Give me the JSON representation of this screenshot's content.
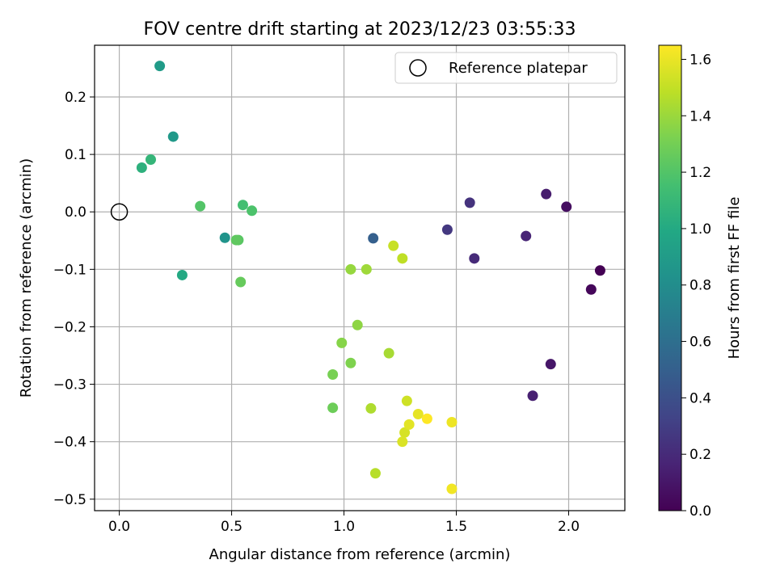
{
  "chart_data": {
    "type": "scatter",
    "title": "FOV centre drift starting at 2023/12/23 03:55:33",
    "xlabel": "Angular distance from reference (arcmin)",
    "ylabel": "Rotation from reference (arcmin)",
    "xlim": [
      -0.11,
      2.25
    ],
    "ylim": [
      -0.52,
      0.29
    ],
    "xticks": [
      0.0,
      0.5,
      1.0,
      1.5,
      2.0
    ],
    "xtick_labels": [
      "0.0",
      "0.5",
      "1.0",
      "1.5",
      "2.0"
    ],
    "yticks": [
      0.2,
      0.1,
      0.0,
      -0.1,
      -0.2,
      -0.3,
      -0.4,
      -0.5
    ],
    "ytick_labels": [
      "0.2",
      "0.1",
      "0.0",
      "−0.1",
      "−0.2",
      "−0.3",
      "−0.4",
      "−0.5"
    ],
    "grid": true,
    "legend": {
      "position": "top-right",
      "entries": [
        "Reference platepar"
      ]
    },
    "colormap": "viridis",
    "colorbar": {
      "label": "Hours from first FF file",
      "range": [
        0.0,
        1.65
      ],
      "ticks": [
        0.0,
        0.2,
        0.4,
        0.6,
        0.8,
        1.0,
        1.2,
        1.4,
        1.6
      ],
      "tick_labels": [
        "0.0",
        "0.2",
        "0.4",
        "0.6",
        "0.8",
        "1.0",
        "1.2",
        "1.4",
        "1.6"
      ]
    },
    "reference_point": {
      "x": 0.0,
      "y": 0.0
    },
    "points": [
      {
        "x": 2.14,
        "y": -0.102,
        "h": 0.0
      },
      {
        "x": 2.1,
        "y": -0.135,
        "h": 0.03
      },
      {
        "x": 1.99,
        "y": 0.009,
        "h": 0.06
      },
      {
        "x": 1.92,
        "y": -0.265,
        "h": 0.1
      },
      {
        "x": 1.9,
        "y": 0.031,
        "h": 0.13
      },
      {
        "x": 1.84,
        "y": -0.32,
        "h": 0.15
      },
      {
        "x": 1.81,
        "y": -0.042,
        "h": 0.17
      },
      {
        "x": 1.58,
        "y": -0.081,
        "h": 0.2
      },
      {
        "x": 1.56,
        "y": 0.016,
        "h": 0.24
      },
      {
        "x": 1.46,
        "y": -0.031,
        "h": 0.27
      },
      {
        "x": 1.13,
        "y": -0.046,
        "h": 0.5
      },
      {
        "x": 0.47,
        "y": -0.045,
        "h": 0.85
      },
      {
        "x": 0.24,
        "y": 0.131,
        "h": 0.88
      },
      {
        "x": 0.18,
        "y": 0.254,
        "h": 0.9
      },
      {
        "x": 0.28,
        "y": -0.11,
        "h": 1.0
      },
      {
        "x": 0.1,
        "y": 0.077,
        "h": 1.05
      },
      {
        "x": 0.14,
        "y": 0.091,
        "h": 1.08
      },
      {
        "x": 0.55,
        "y": 0.012,
        "h": 1.15
      },
      {
        "x": 0.59,
        "y": 0.002,
        "h": 1.18
      },
      {
        "x": 0.36,
        "y": 0.01,
        "h": 1.2
      },
      {
        "x": 0.53,
        "y": -0.049,
        "h": 1.22
      },
      {
        "x": 0.52,
        "y": -0.049,
        "h": 1.24
      },
      {
        "x": 0.54,
        "y": -0.122,
        "h": 1.26
      },
      {
        "x": 0.95,
        "y": -0.341,
        "h": 1.28
      },
      {
        "x": 0.95,
        "y": -0.283,
        "h": 1.31
      },
      {
        "x": 1.03,
        "y": -0.263,
        "h": 1.33
      },
      {
        "x": 0.99,
        "y": -0.228,
        "h": 1.35
      },
      {
        "x": 1.06,
        "y": -0.197,
        "h": 1.37
      },
      {
        "x": 1.03,
        "y": -0.1,
        "h": 1.39
      },
      {
        "x": 1.1,
        "y": -0.1,
        "h": 1.41
      },
      {
        "x": 1.2,
        "y": -0.246,
        "h": 1.43
      },
      {
        "x": 1.12,
        "y": -0.342,
        "h": 1.45
      },
      {
        "x": 1.14,
        "y": -0.455,
        "h": 1.47
      },
      {
        "x": 1.26,
        "y": -0.081,
        "h": 1.49
      },
      {
        "x": 1.22,
        "y": -0.059,
        "h": 1.51
      },
      {
        "x": 1.28,
        "y": -0.329,
        "h": 1.53
      },
      {
        "x": 1.27,
        "y": -0.384,
        "h": 1.55
      },
      {
        "x": 1.26,
        "y": -0.4,
        "h": 1.56
      },
      {
        "x": 1.29,
        "y": -0.37,
        "h": 1.58
      },
      {
        "x": 1.33,
        "y": -0.352,
        "h": 1.59
      },
      {
        "x": 1.48,
        "y": -0.366,
        "h": 1.61
      },
      {
        "x": 1.48,
        "y": -0.482,
        "h": 1.62
      },
      {
        "x": 1.37,
        "y": -0.36,
        "h": 1.65
      }
    ]
  }
}
